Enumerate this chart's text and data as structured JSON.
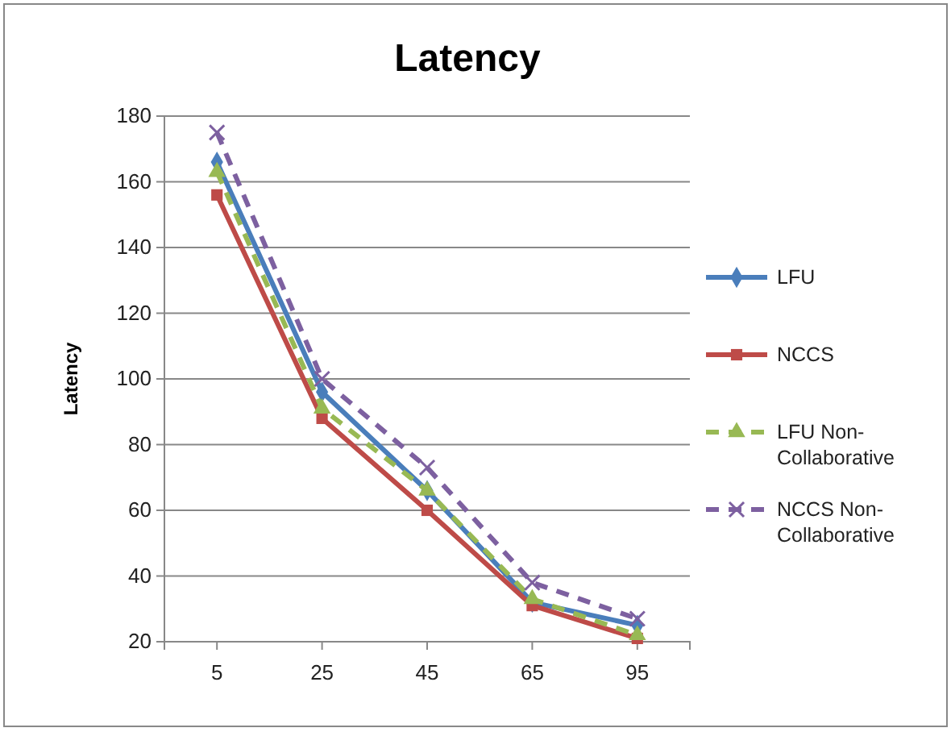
{
  "chart_data": {
    "type": "line",
    "title": "Latency",
    "ylabel": "Latency",
    "categories": [
      "5",
      "25",
      "45",
      "65",
      "95"
    ],
    "ylim": [
      20,
      180
    ],
    "yticks": [
      20,
      40,
      60,
      80,
      100,
      120,
      140,
      160,
      180
    ],
    "grid": "y",
    "legend": "right",
    "series": [
      {
        "name": "LFU",
        "color": "#4a7ebb",
        "marker": "diamond",
        "line_style": "solid",
        "values": [
          166,
          96,
          66,
          32,
          25
        ]
      },
      {
        "name": "NCCS",
        "color": "#be4b48",
        "marker": "square",
        "line_style": "solid",
        "values": [
          156,
          88,
          60,
          31,
          21
        ]
      },
      {
        "name": "LFU Non-Collaborative",
        "color": "#98b954",
        "marker": "triangle",
        "line_style": "dashed",
        "values": [
          163,
          91,
          66,
          33,
          22
        ]
      },
      {
        "name": "NCCS Non-Collaborative",
        "color": "#7d60a0",
        "marker": "cross",
        "line_style": "dashed",
        "values": [
          175,
          100,
          73,
          38,
          27
        ]
      }
    ]
  }
}
